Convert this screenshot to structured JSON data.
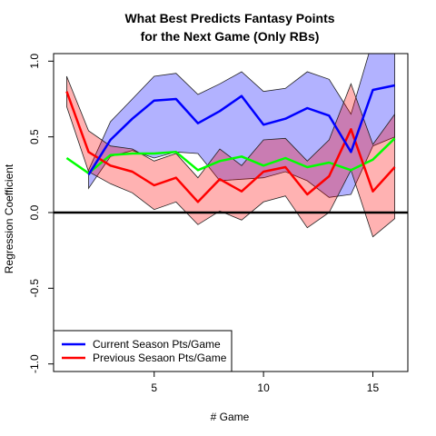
{
  "chart_data": {
    "type": "line",
    "title": "What Best Predicts Fantasy Points",
    "subtitle": "for the Next Game (Only RBs)",
    "xlabel": "# Game",
    "ylabel": "Regression Coefficient",
    "xlim": [
      0.4,
      16.6
    ],
    "ylim": [
      -1.05,
      1.05
    ],
    "xticks": [
      5,
      10,
      15
    ],
    "xtick_labels": [
      "5",
      "10",
      "15"
    ],
    "yticks": [
      -1.0,
      -0.5,
      0.0,
      0.5,
      1.0
    ],
    "ytick_labels": [
      "-1.0",
      "-0.5",
      "0.0",
      "0.5",
      "1.0"
    ],
    "hline": 0,
    "grid": false,
    "legend_position": "bottom-left",
    "x": [
      1,
      2,
      3,
      4,
      5,
      6,
      7,
      8,
      9,
      10,
      11,
      12,
      13,
      14,
      15,
      16
    ],
    "series": [
      {
        "name": "Current Season Pts/Game",
        "color": "#0000ff",
        "band_color": "#0000ff",
        "values": [
          null,
          0.25,
          0.48,
          0.62,
          0.74,
          0.75,
          0.59,
          0.67,
          0.77,
          0.58,
          0.62,
          0.69,
          0.64,
          0.4,
          0.81,
          0.84
        ],
        "lower": [
          null,
          0.16,
          0.37,
          0.41,
          0.36,
          0.4,
          0.39,
          0.21,
          0.22,
          0.23,
          0.27,
          0.21,
          0.1,
          0.12,
          0.44,
          0.5
        ],
        "upper": [
          null,
          0.28,
          0.6,
          0.75,
          0.9,
          0.92,
          0.78,
          0.85,
          0.93,
          0.8,
          0.82,
          0.93,
          0.88,
          0.65,
          1.14,
          1.14
        ]
      },
      {
        "name": "Previous Sesaon Pts/Game",
        "color": "#ff0000",
        "band_color": "#ff0000",
        "values": [
          0.8,
          0.4,
          0.31,
          0.27,
          0.18,
          0.23,
          0.07,
          0.22,
          0.14,
          0.27,
          0.3,
          0.12,
          0.24,
          0.55,
          0.14,
          0.3
        ],
        "lower": [
          0.7,
          0.27,
          0.19,
          0.13,
          0.02,
          0.07,
          -0.08,
          0.01,
          -0.05,
          0.07,
          0.11,
          -0.1,
          0.0,
          0.28,
          -0.16,
          -0.04
        ],
        "upper": [
          0.9,
          0.54,
          0.44,
          0.42,
          0.34,
          0.39,
          0.23,
          0.42,
          0.31,
          0.48,
          0.49,
          0.34,
          0.48,
          0.85,
          0.45,
          0.65
        ]
      },
      {
        "color": "#00ff00",
        "values": [
          0.36,
          0.26,
          0.38,
          0.39,
          0.39,
          0.4,
          0.28,
          0.34,
          0.37,
          0.31,
          0.36,
          0.3,
          0.33,
          0.28,
          0.35,
          0.49
        ]
      }
    ]
  }
}
